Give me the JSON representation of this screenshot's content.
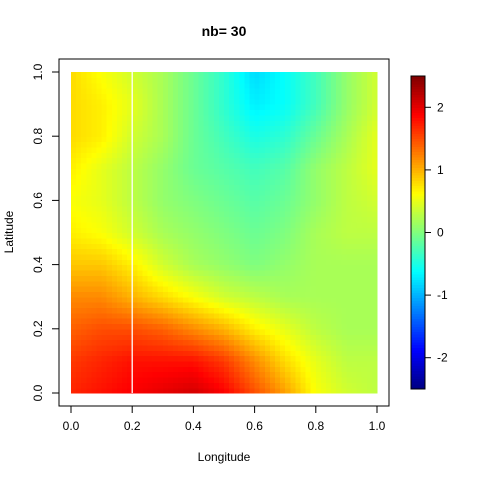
{
  "chart_data": {
    "type": "heatmap",
    "title": "nb= 30",
    "xlabel": "Longitude",
    "ylabel": "Latitude",
    "xlim": [
      0,
      1
    ],
    "ylim": [
      0,
      1
    ],
    "x_ticks": [
      0,
      0.2,
      0.4,
      0.6,
      0.8,
      1
    ],
    "x_tick_labels": [
      "0.0",
      "0.2",
      "0.4",
      "0.6",
      "0.8",
      "1.0"
    ],
    "y_ticks": [
      0,
      0.2,
      0.4,
      0.6,
      0.8,
      1
    ],
    "y_tick_labels": [
      "0.0",
      "0.2",
      "0.4",
      "0.6",
      "0.8",
      "1.0"
    ],
    "vertical_reference_line": 0.2,
    "colorbar": {
      "range": [
        -2.5,
        2.5
      ],
      "ticks": [
        2,
        1,
        0,
        -1,
        -2
      ],
      "tick_labels": [
        "2",
        "1",
        "0",
        "-1",
        "-2"
      ],
      "palette": [
        "#00007F",
        "#0000FF",
        "#007FFF",
        "#00FFFF",
        "#7FFF7F",
        "#FFFF00",
        "#FF7F00",
        "#FF0000",
        "#7F0000"
      ]
    },
    "grid_x": [
      0.0,
      0.1,
      0.2,
      0.3,
      0.4,
      0.5,
      0.6,
      0.7,
      0.8,
      0.9,
      1.0
    ],
    "grid_y": [
      0.0,
      0.1,
      0.2,
      0.3,
      0.4,
      0.5,
      0.6,
      0.7,
      0.8,
      0.9,
      1.0
    ],
    "z": [
      [
        1.7,
        1.8,
        1.9,
        2.0,
        2.1,
        1.9,
        1.5,
        1.1,
        0.6,
        0.4,
        0.3
      ],
      [
        1.6,
        1.7,
        1.8,
        1.8,
        1.8,
        1.6,
        1.2,
        0.8,
        0.5,
        0.3,
        0.3
      ],
      [
        1.4,
        1.5,
        1.5,
        1.4,
        1.2,
        1.0,
        0.7,
        0.5,
        0.3,
        0.2,
        0.2
      ],
      [
        1.2,
        1.2,
        1.0,
        0.8,
        0.6,
        0.4,
        0.3,
        0.2,
        0.2,
        0.2,
        0.2
      ],
      [
        0.9,
        0.9,
        0.7,
        0.4,
        0.2,
        0.1,
        0.0,
        0.1,
        0.2,
        0.2,
        0.2
      ],
      [
        0.7,
        0.6,
        0.4,
        0.2,
        0.1,
        0.0,
        -0.1,
        0.0,
        0.2,
        0.3,
        0.3
      ],
      [
        0.6,
        0.5,
        0.3,
        0.1,
        0.0,
        -0.1,
        -0.2,
        -0.1,
        0.1,
        0.3,
        0.4
      ],
      [
        0.7,
        0.5,
        0.3,
        0.1,
        -0.1,
        -0.2,
        -0.3,
        -0.2,
        0.1,
        0.3,
        0.5
      ],
      [
        0.8,
        0.7,
        0.4,
        0.2,
        -0.1,
        -0.3,
        -0.5,
        -0.4,
        -0.1,
        0.2,
        0.5
      ],
      [
        0.8,
        0.7,
        0.5,
        0.2,
        -0.1,
        -0.4,
        -0.7,
        -0.6,
        -0.3,
        0.1,
        0.4
      ],
      [
        0.8,
        0.6,
        0.4,
        0.2,
        -0.1,
        -0.4,
        -0.8,
        -0.6,
        -0.3,
        0.1,
        0.4
      ]
    ]
  }
}
